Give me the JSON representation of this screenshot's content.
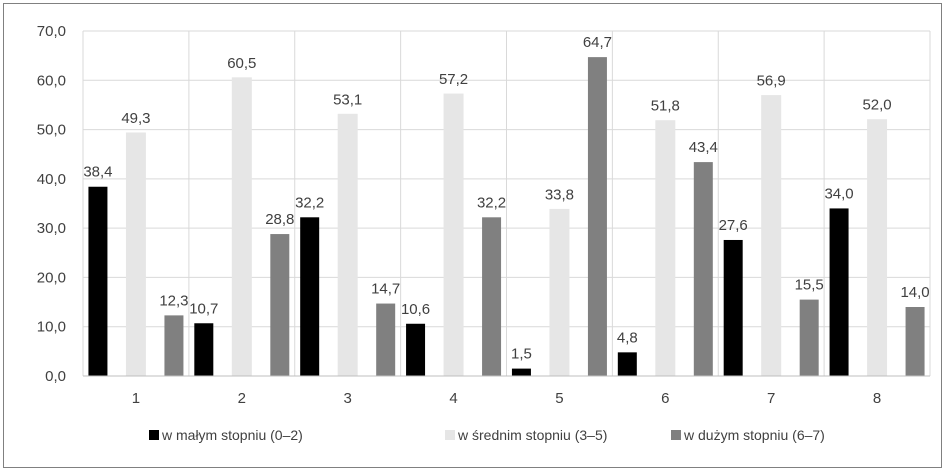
{
  "chart_data": {
    "type": "bar",
    "categories": [
      "1",
      "2",
      "3",
      "4",
      "5",
      "6",
      "7",
      "8"
    ],
    "series": [
      {
        "name": "w małym stopniu (0–2)",
        "color": "#000000",
        "values": [
          38.4,
          10.7,
          32.2,
          10.6,
          1.5,
          4.8,
          27.6,
          34.0
        ],
        "labels": [
          "38,4",
          "10,7",
          "32,2",
          "10,6",
          "1,5",
          "4,8",
          "27,6",
          "34,0"
        ]
      },
      {
        "name": "w średnim stopniu (3–5)",
        "color": "#e6e6e6",
        "values": [
          49.3,
          60.5,
          53.1,
          57.2,
          33.8,
          51.8,
          56.9,
          52.0
        ],
        "labels": [
          "49,3",
          "60,5",
          "53,1",
          "57,2",
          "33,8",
          "51,8",
          "56,9",
          "52,0"
        ]
      },
      {
        "name": "w dużym stopniu (6–7)",
        "color": "#808080",
        "values": [
          12.3,
          28.8,
          14.7,
          32.2,
          64.7,
          43.4,
          15.5,
          14.0
        ],
        "labels": [
          "12,3",
          "28,8",
          "14,7",
          "32,2",
          "64,7",
          "43,4",
          "15,5",
          "14,0"
        ]
      }
    ],
    "y_ticks": [
      "0,0",
      "10,0",
      "20,0",
      "30,0",
      "40,0",
      "50,0",
      "60,0",
      "70,0"
    ],
    "ylim": [
      0,
      70
    ],
    "grid": true,
    "legend_position": "bottom"
  }
}
